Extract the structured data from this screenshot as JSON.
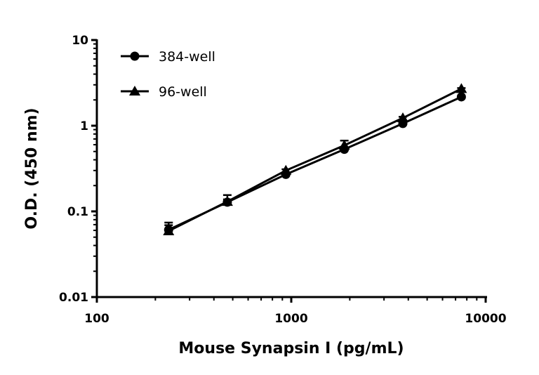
{
  "chart_data": {
    "type": "line",
    "xlabel": "Mouse Synapsin  I (pg/mL)",
    "ylabel": "O.D. (450 nm)",
    "x_scale": "log",
    "y_scale": "log",
    "xlim": [
      100,
      10000
    ],
    "ylim": [
      0.01,
      10
    ],
    "x_ticks": [
      "100",
      "1000",
      "10000"
    ],
    "y_ticks": [
      "0.01",
      "0.1",
      "1",
      "10"
    ],
    "x_tick_values": [
      100,
      1000,
      10000
    ],
    "y_tick_values": [
      0.01,
      0.1,
      1,
      10
    ],
    "grid": false,
    "legend_position": "top-left",
    "x": [
      234,
      469,
      938,
      1875,
      3750,
      7500
    ],
    "series": [
      {
        "name": "384-well",
        "marker": "circle",
        "color": "#000000",
        "values": [
          0.061,
          0.128,
          0.27,
          0.53,
          1.06,
          2.17
        ],
        "error": [
          0.008,
          0.01,
          0.01,
          0.03,
          0.04,
          0.05
        ]
      },
      {
        "name": "96-well",
        "marker": "triangle",
        "color": "#000000",
        "values": [
          0.059,
          0.13,
          0.3,
          0.59,
          1.23,
          2.7
        ],
        "error": [
          0.015,
          0.025,
          0.01,
          0.08,
          0.04,
          0.05
        ]
      }
    ]
  }
}
